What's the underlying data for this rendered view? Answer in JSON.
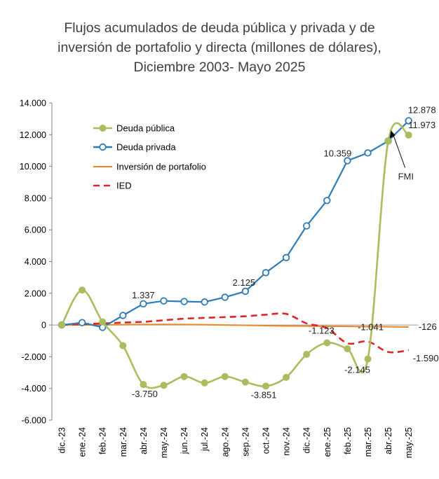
{
  "chart_data": {
    "type": "line",
    "title_lines": [
      "Flujos acumulados de deuda pública y privada y de",
      "inversión de portafolio y directa (millones de dólares),",
      "Diciembre 2003- Mayo 2025"
    ],
    "categories": [
      "dic.-23",
      "ene.-24",
      "feb.-24",
      "mar.-24",
      "abr.-24",
      "may.-24",
      "jun.-24",
      "jul.-24",
      "ago.-24",
      "sep.-24",
      "oct.-24",
      "nov.-24",
      "dic.-24",
      "ene.-25",
      "feb.-25",
      "mar.-25",
      "abr.-25",
      "may.-25"
    ],
    "y_ticks": [
      "14.000",
      "12.000",
      "10.000",
      "8.000",
      "6.000",
      "4.000",
      "2.000",
      "0",
      "-2.000",
      "-4.000",
      "-6.000"
    ],
    "ylim": [
      -6000,
      14000
    ],
    "xlabel": "",
    "ylabel": "",
    "grid": false,
    "legend_position": "top-left",
    "series": [
      {
        "name": "Deuda pública",
        "color": "#a9bd5e",
        "style": "smooth-markers",
        "values": [
          0,
          2200,
          200,
          -1300,
          -3750,
          -3800,
          -3250,
          -3650,
          -3250,
          -3600,
          -3851,
          -3300,
          -1850,
          -1123,
          -1500,
          -2145,
          11600,
          11973
        ]
      },
      {
        "name": "Deuda privada",
        "color": "#2e7bb8",
        "style": "line-open-markers",
        "values": [
          0,
          150,
          -150,
          600,
          1337,
          1520,
          1480,
          1450,
          1750,
          2125,
          3300,
          4250,
          6250,
          7850,
          10359,
          10850,
          11600,
          12878
        ]
      },
      {
        "name": "Inversión de portafolio",
        "color": "#ee8626",
        "style": "line",
        "values": [
          0,
          0,
          10,
          20,
          30,
          40,
          30,
          20,
          0,
          -20,
          -40,
          -60,
          -70,
          -80,
          -90,
          -100,
          -110,
          -126
        ]
      },
      {
        "name": "IED",
        "color": "#d9262c",
        "style": "dashed",
        "values": [
          0,
          50,
          100,
          150,
          200,
          300,
          400,
          450,
          500,
          550,
          650,
          700,
          100,
          -200,
          -1150,
          -1041,
          -1700,
          -1590
        ]
      }
    ],
    "data_labels": [
      {
        "text": "1.337",
        "series": 1,
        "index": 4
      },
      {
        "text": "2.125",
        "series": 1,
        "index": 9
      },
      {
        "text": "10.359",
        "series": 1,
        "index": 14
      },
      {
        "text": "12.878",
        "series": 1,
        "index": 17
      },
      {
        "text": "11.973",
        "series": 0,
        "index": 17
      },
      {
        "text": "-3.750",
        "series": 0,
        "index": 4
      },
      {
        "text": "-3.851",
        "series": 0,
        "index": 10
      },
      {
        "text": "-1.123",
        "series": 0,
        "index": 13
      },
      {
        "text": "-2.145",
        "series": 0,
        "index": 15
      },
      {
        "text": "-1.041",
        "series": 3,
        "index": 15
      },
      {
        "text": "-126",
        "series": 2,
        "index": 17
      },
      {
        "text": "-1.590",
        "series": 3,
        "index": 17
      }
    ],
    "annotations": [
      {
        "text": "FMI",
        "arrow_to_series": 0,
        "arrow_to_index": 16
      }
    ]
  }
}
